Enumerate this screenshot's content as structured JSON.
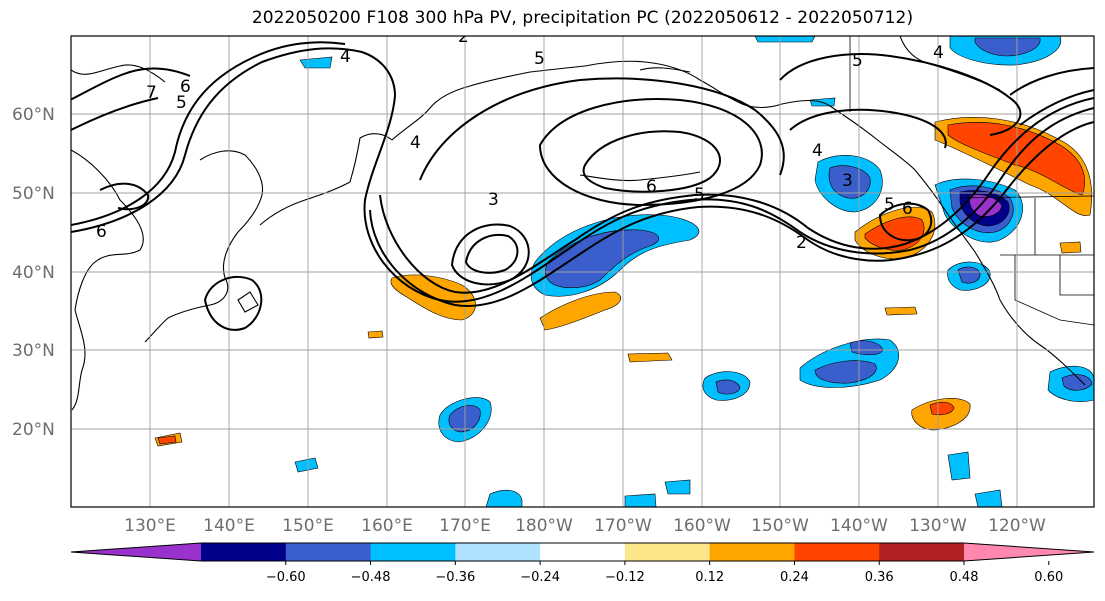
{
  "title": "2022050200 F108 300 hPa PV, precipitation PC (2022050612 - 2022050712)",
  "map": {
    "lat_labels": [
      "60°N",
      "50°N",
      "40°N",
      "30°N",
      "20°N"
    ],
    "lon_labels": [
      "130°E",
      "140°E",
      "150°E",
      "160°E",
      "170°E",
      "180°W",
      "170°W",
      "160°W",
      "150°W",
      "140°W",
      "130°W",
      "120°W"
    ],
    "contour_labels": [
      "7",
      "6",
      "5",
      "4",
      "3",
      "2",
      "6",
      "5",
      "4",
      "3",
      "2",
      "5",
      "6",
      "5",
      "4",
      "6",
      "5",
      "4"
    ]
  },
  "colorbar": {
    "ticks": [
      "−0.60",
      "−0.48",
      "−0.36",
      "−0.24",
      "−0.12",
      "0.12",
      "0.24",
      "0.36",
      "0.48",
      "0.60"
    ],
    "colors": [
      "#9932cc",
      "#00008b",
      "#3a5fcd",
      "#00bfff",
      "#b0e2ff",
      "#ffffff",
      "#fde68a",
      "#ffa500",
      "#ff4500",
      "#b22222",
      "#ff88b0"
    ]
  }
}
